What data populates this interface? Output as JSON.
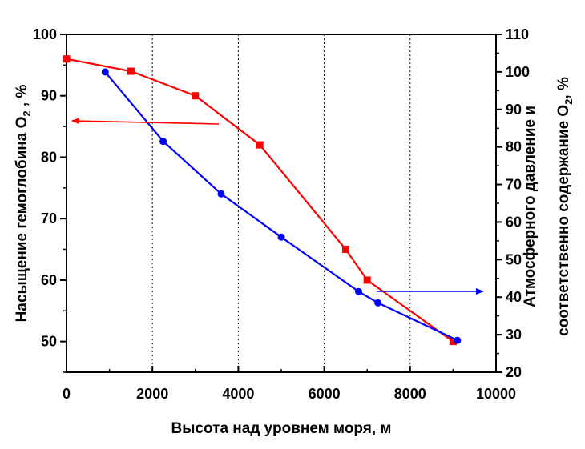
{
  "chart_data": {
    "type": "line",
    "title": "",
    "xlabel": "Высота над уровнем моря, м",
    "ylabel_left_main": "Насыщение гемоглобина O",
    "ylabel_left_sub": "2",
    "ylabel_left_unit": " , %",
    "ylabel_right_line1": "Атмосферного давление и",
    "ylabel_right_line2_main": "соответственно содержание O",
    "ylabel_right_line2_sub": "2",
    "ylabel_right_line2_unit": ", %",
    "xlim": [
      0,
      10000
    ],
    "ylim_left": [
      45,
      100
    ],
    "ylim_right": [
      20,
      110
    ],
    "x_ticks": [
      "0",
      "2000",
      "4000",
      "6000",
      "8000",
      "10000"
    ],
    "y_left_ticks": [
      "100",
      "90",
      "80",
      "70",
      "60",
      "50"
    ],
    "y_right_ticks": [
      "110",
      "100",
      "90",
      "80",
      "70",
      "60",
      "50",
      "40",
      "30",
      "20"
    ],
    "grid": "vertical dotted lines at 2000, 4000, 6000, 8000",
    "series": [
      {
        "axis": "left",
        "color": "#ff0000",
        "marker": "square",
        "x": [
          0,
          1500,
          3000,
          4500,
          6500,
          7000,
          9000
        ],
        "y": [
          96,
          94,
          90,
          82,
          65,
          60,
          50
        ]
      },
      {
        "axis": "right",
        "color": "#0000ff",
        "marker": "circle",
        "x": [
          900,
          2250,
          3600,
          5000,
          6800,
          7250,
          9100
        ],
        "y": [
          100,
          81.5,
          67.5,
          56,
          41.5,
          38.5,
          28.5
        ]
      }
    ],
    "annotations": [
      {
        "type": "arrow",
        "color": "#ff0000",
        "points_to": "left axis"
      },
      {
        "type": "arrow",
        "color": "#0000ff",
        "points_to": "right axis"
      }
    ]
  }
}
